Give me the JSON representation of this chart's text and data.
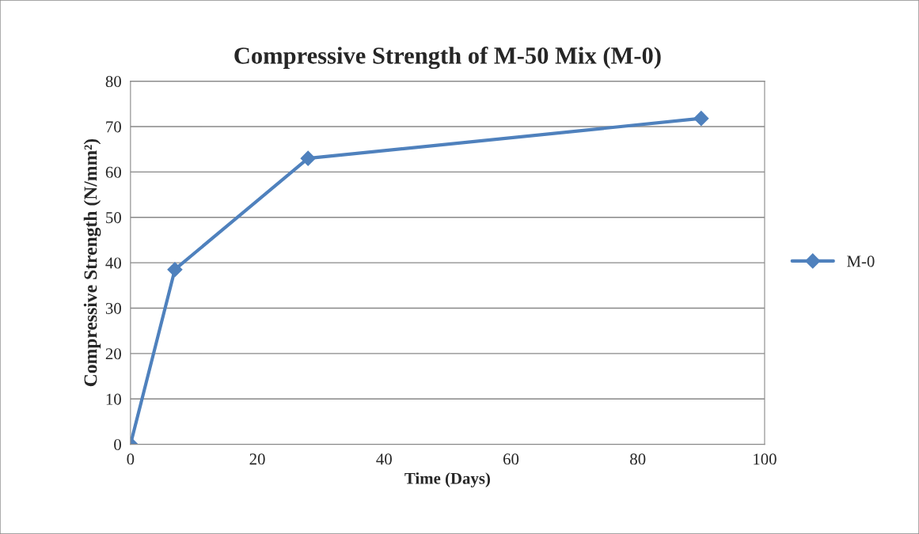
{
  "chart_data": {
    "type": "line",
    "title": "Compressive Strength of M-50 Mix (M-0)",
    "xlabel": "Time (Days)",
    "ylabel": "Compressive Strength (N/mm²)",
    "x": [
      0,
      7,
      28,
      90
    ],
    "series": [
      {
        "name": "M-0",
        "color": "#4f81bd",
        "values": [
          0,
          38.5,
          63,
          71.8
        ]
      }
    ],
    "xlim": [
      0,
      100
    ],
    "xticks": [
      0,
      20,
      40,
      60,
      80,
      100
    ],
    "ylim": [
      0,
      80
    ],
    "yticks": [
      0,
      10,
      20,
      30,
      40,
      50,
      60,
      70,
      80
    ],
    "grid": "y",
    "legend": "right",
    "marker": "diamond",
    "line_style": "solid"
  }
}
